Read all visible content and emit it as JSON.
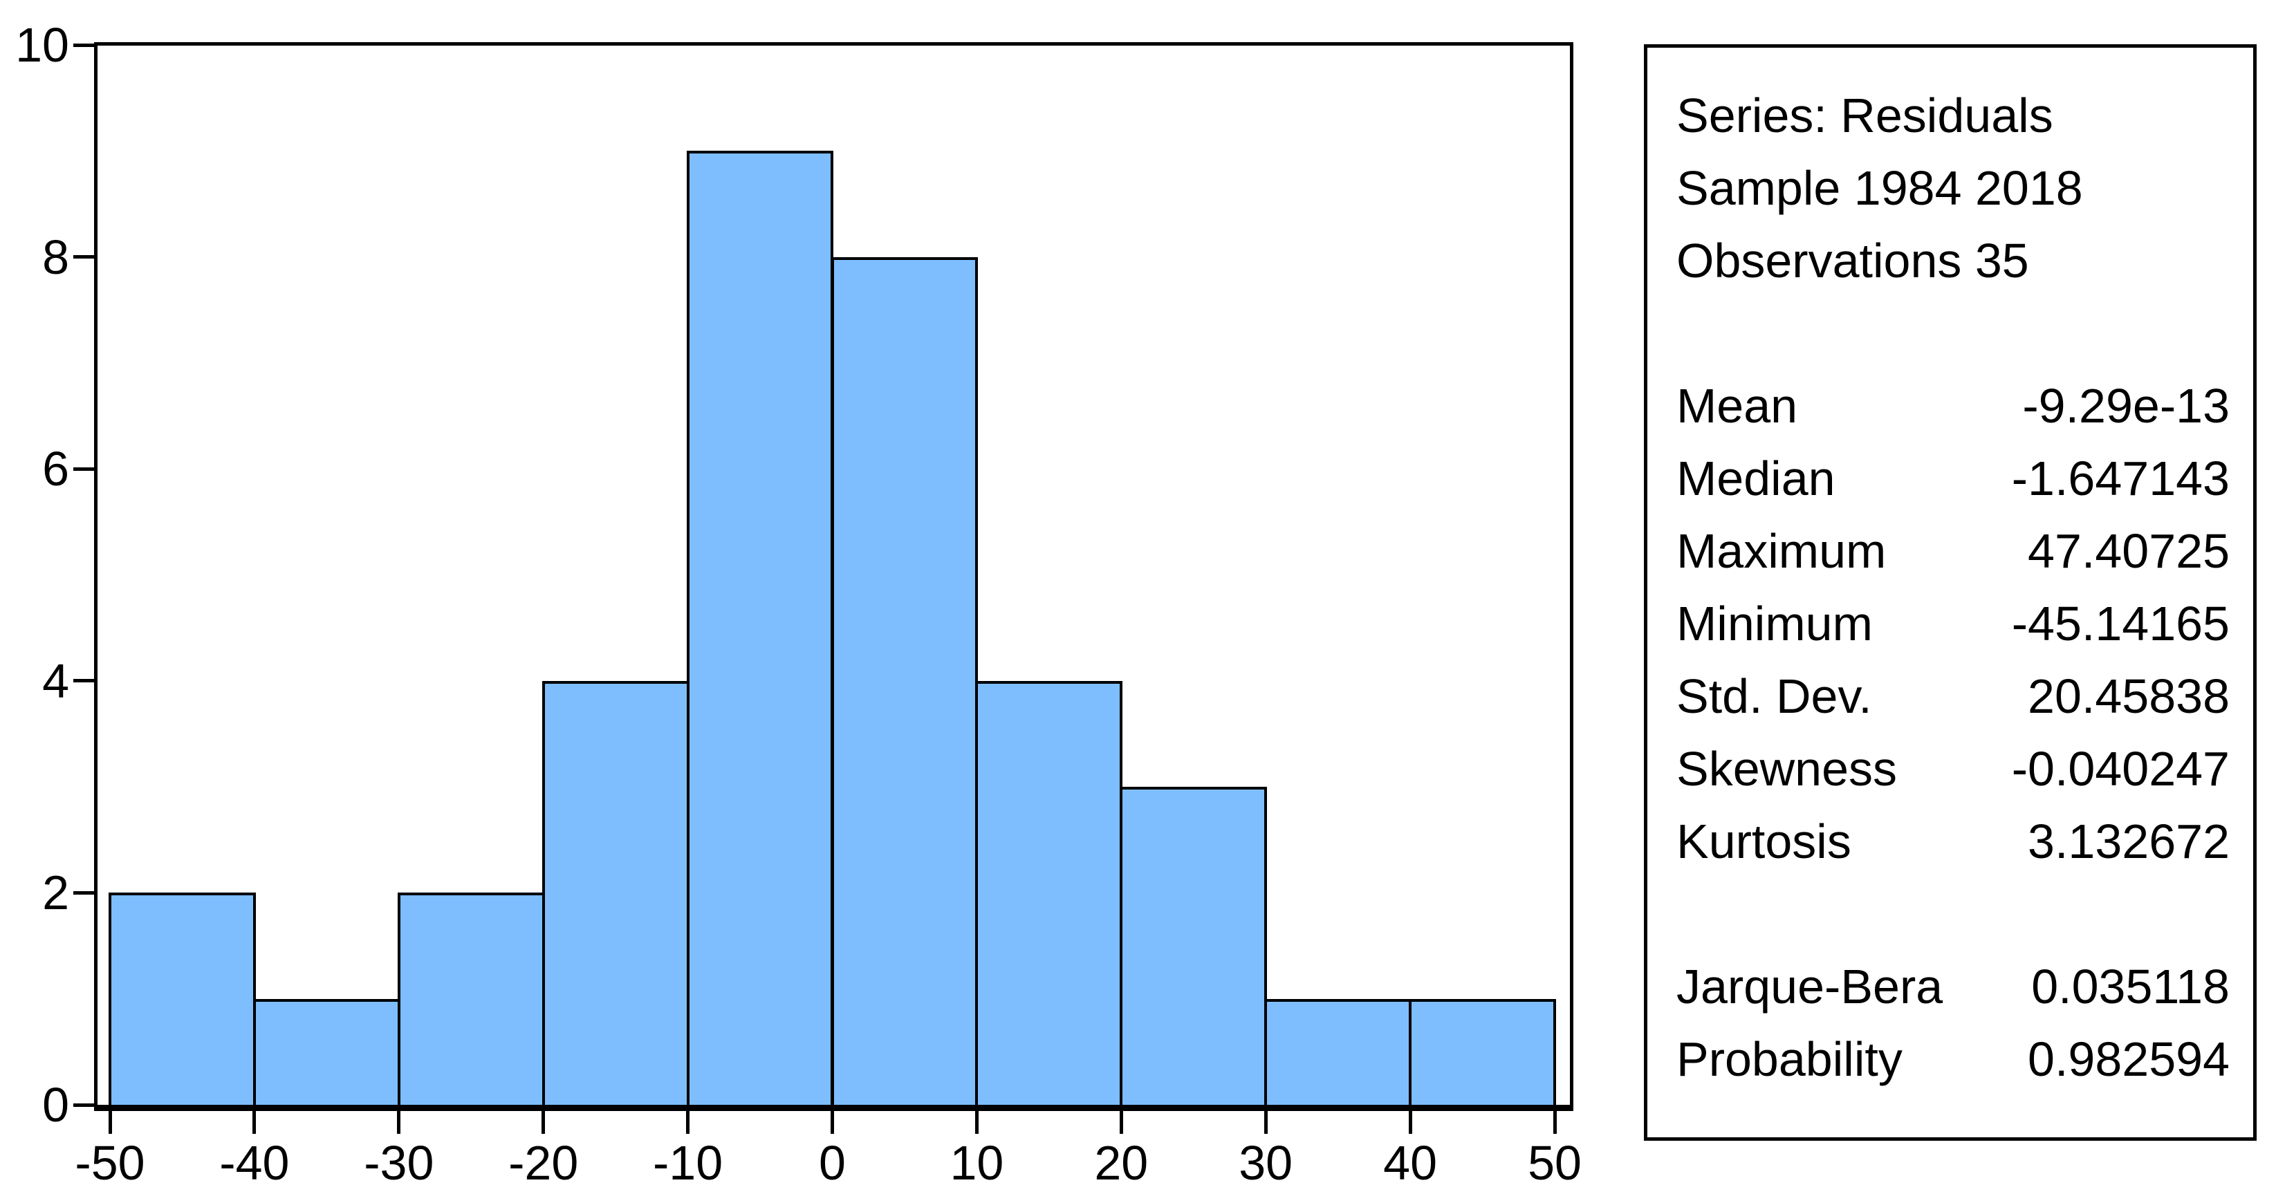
{
  "page": {
    "background": "#FFFFFF"
  },
  "chart_data": {
    "type": "bar",
    "subtype": "histogram",
    "series_name": "Residuals",
    "title": "",
    "xlabel": "",
    "ylabel": "",
    "bin_edges": [
      -50,
      -40,
      -30,
      -20,
      -10,
      0,
      10,
      20,
      30,
      40,
      50
    ],
    "values": [
      2,
      1,
      2,
      4,
      9,
      8,
      4,
      3,
      1,
      1
    ],
    "x_ticks": [
      -50,
      -40,
      -30,
      -20,
      -10,
      0,
      10,
      20,
      30,
      40,
      50
    ],
    "y_ticks": [
      0,
      2,
      4,
      6,
      8,
      10
    ],
    "xlim": [
      -50,
      50
    ],
    "ylim": [
      0,
      10
    ],
    "grid": false,
    "legend": "none",
    "bar_fill_color": "#7EBEFF",
    "bar_border_color": "#000000",
    "axis_color": "#000000"
  },
  "stats_box": {
    "header_lines": [
      "Series: Residuals",
      "Sample 1984 2018",
      "Observations 35"
    ],
    "stats": [
      {
        "label": "Mean",
        "value": "-9.29e-13"
      },
      {
        "label": "Median",
        "value": "-1.647143"
      },
      {
        "label": "Maximum",
        "value": "47.40725"
      },
      {
        "label": "Minimum",
        "value": "-45.14165"
      },
      {
        "label": "Std. Dev.",
        "value": "20.45838"
      },
      {
        "label": "Skewness",
        "value": "-0.040247"
      },
      {
        "label": "Kurtosis",
        "value": "3.132672"
      }
    ],
    "tests": [
      {
        "label": "Jarque-Bera",
        "value": "0.035118"
      },
      {
        "label": "Probability",
        "value": "0.982594"
      }
    ]
  }
}
